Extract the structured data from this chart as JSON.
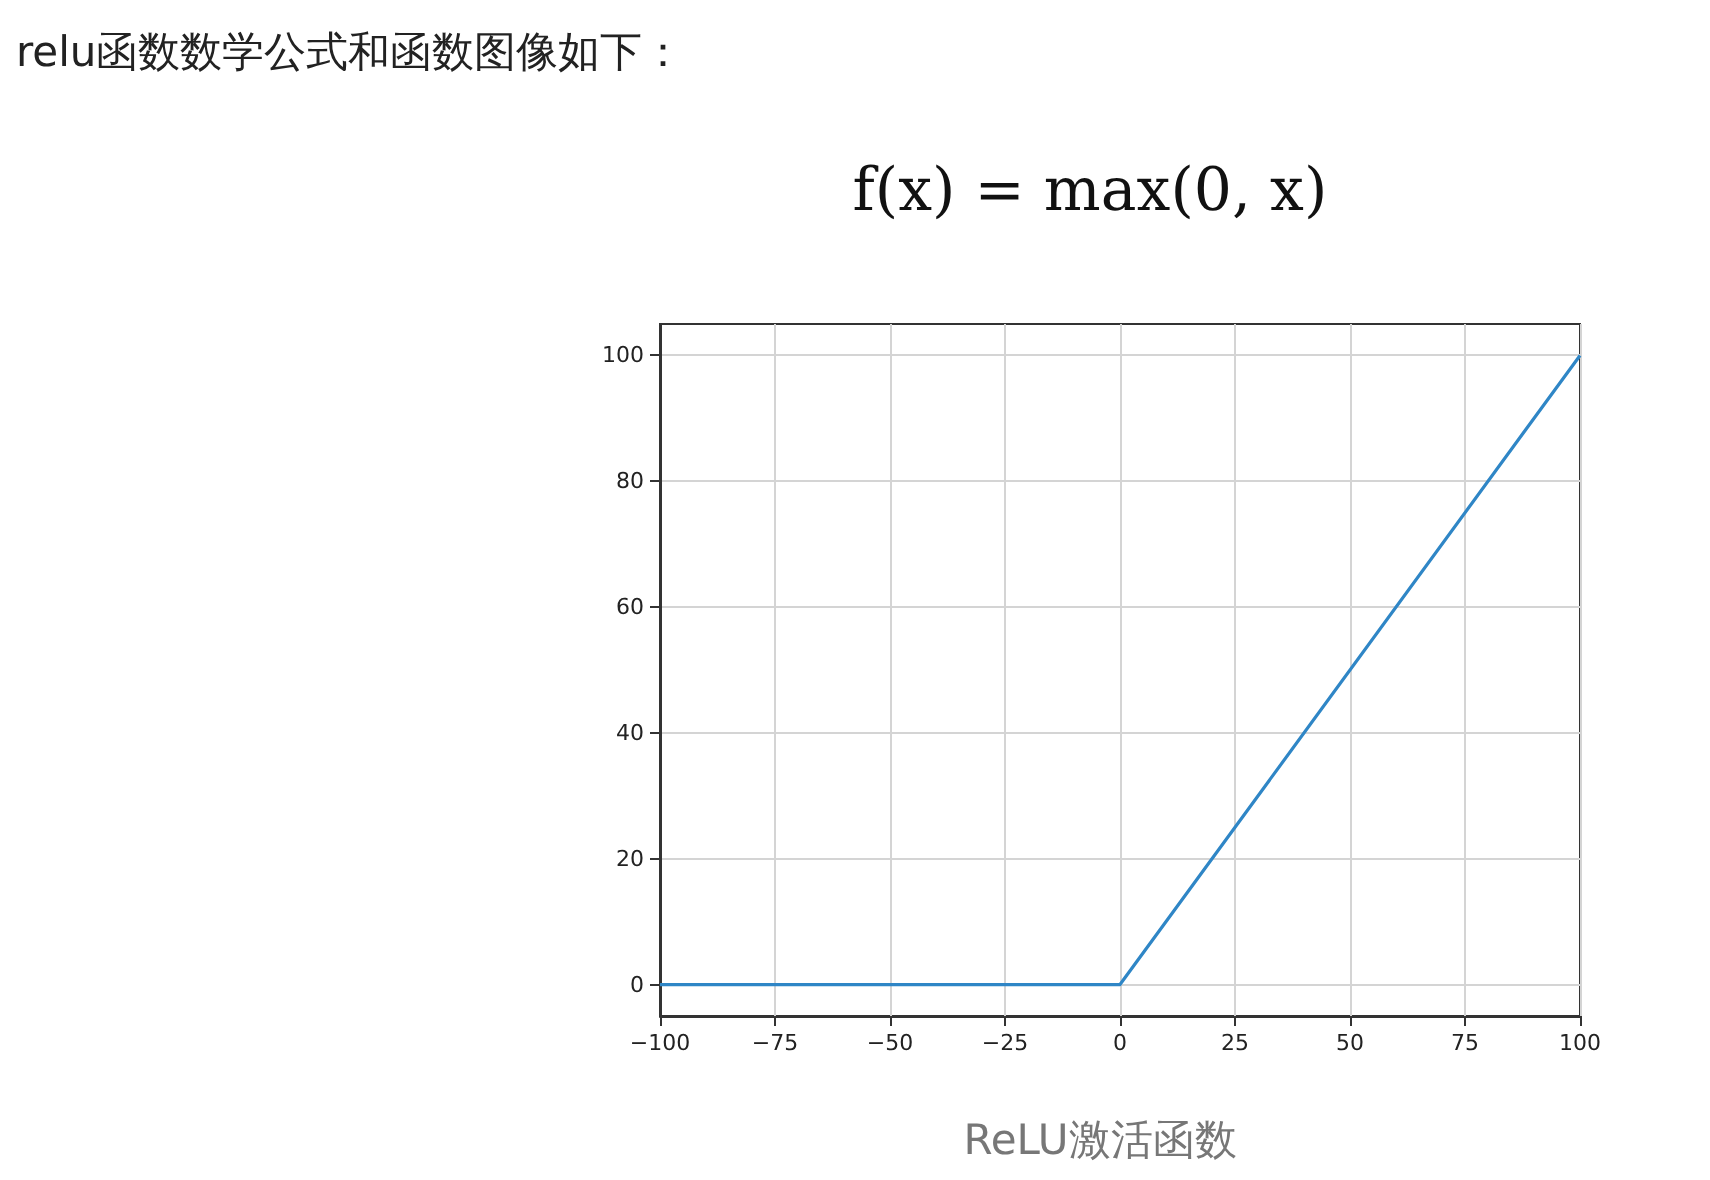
{
  "chart_data": {
    "type": "line",
    "title": "relu函数数学公式和函数图像如下：",
    "subtitle": "f(x) = max(0, x)",
    "annotations": [
      "ReLU激活函数"
    ],
    "x": [
      -100,
      0,
      100
    ],
    "series": [
      {
        "color": "#2f86c6",
        "values": [
          0,
          0,
          100
        ]
      }
    ],
    "xlim": [
      -100,
      100
    ],
    "xticks": [
      {
        "value": -100,
        "label": "−100"
      },
      {
        "value": -75,
        "label": "−75"
      },
      {
        "value": -50,
        "label": "−50"
      },
      {
        "value": -25,
        "label": "−25"
      },
      0,
      25,
      50,
      75,
      100
    ],
    "ylim": [
      -5,
      105
    ],
    "yticks": [
      0,
      20,
      40,
      60,
      80,
      100
    ],
    "grid": true,
    "marker": "none",
    "line_style": "solid"
  }
}
